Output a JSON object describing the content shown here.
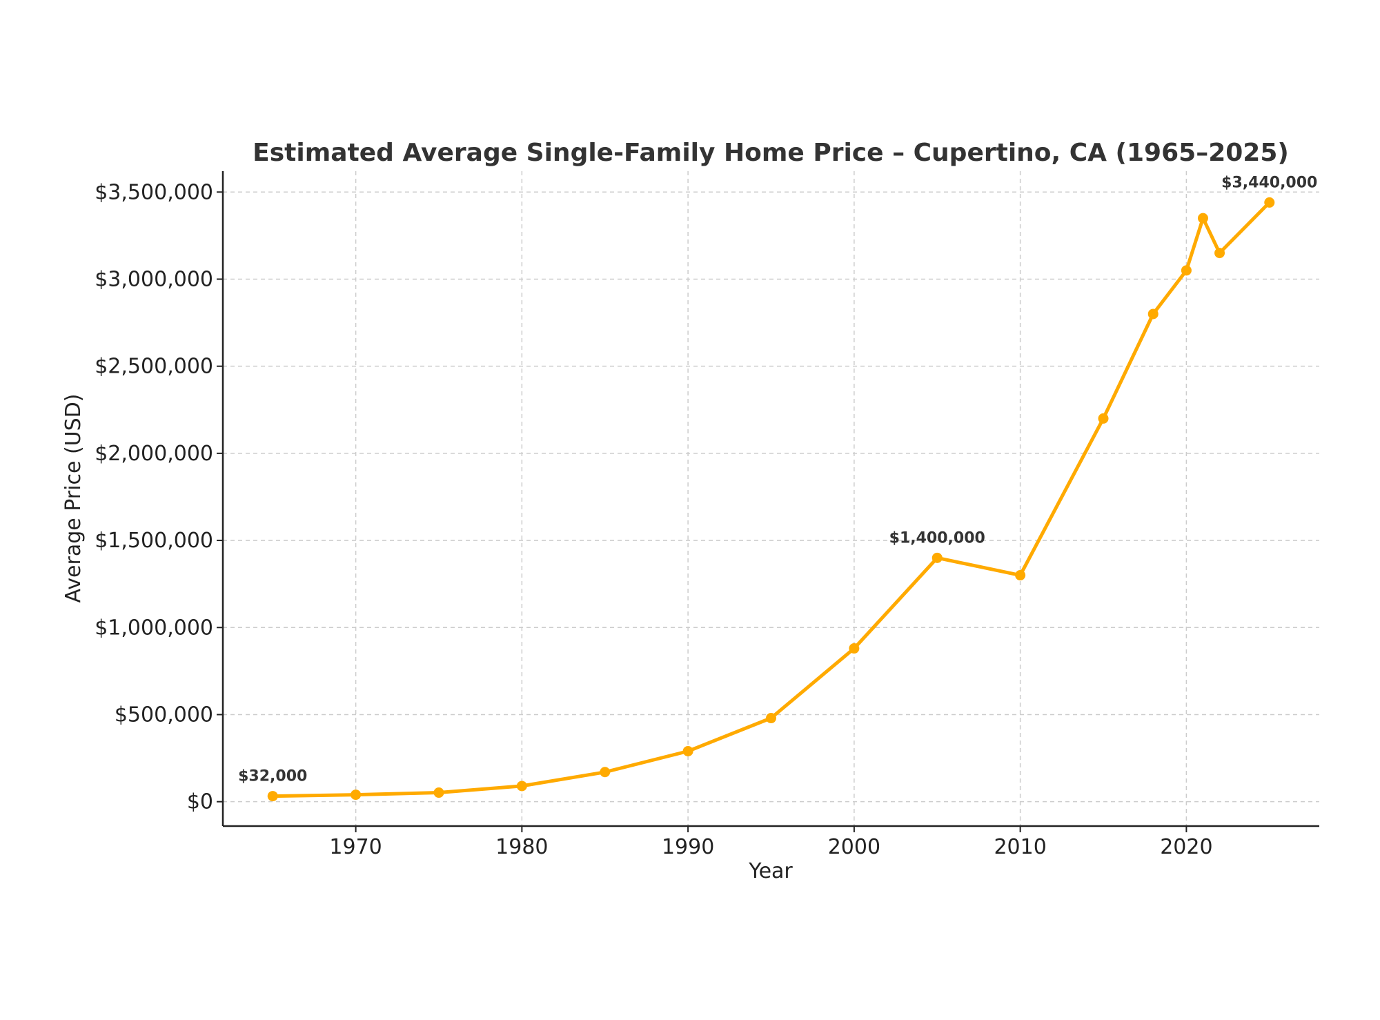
{
  "chart_data": {
    "type": "line",
    "title": "Estimated Average Single-Family Home Price – Cupertino, CA (1965–2025)",
    "xlabel": "Year",
    "ylabel": "Average Price (USD)",
    "xlim": [
      1962,
      2028
    ],
    "ylim": [
      -140000,
      3620000
    ],
    "x_ticks": [
      1970,
      1980,
      1990,
      2000,
      2010,
      2020
    ],
    "x_tick_labels": [
      "1970",
      "1980",
      "1990",
      "2000",
      "2010",
      "2020"
    ],
    "y_ticks": [
      0,
      500000,
      1000000,
      1500000,
      2000000,
      2500000,
      3000000,
      3500000
    ],
    "y_tick_labels": [
      "$0",
      "$500,000",
      "$1,000,000",
      "$1,500,000",
      "$2,000,000",
      "$2,500,000",
      "$3,000,000",
      "$3,500,000"
    ],
    "grid": true,
    "color": "#FFAA00",
    "series": [
      {
        "x": [
          1965,
          1970,
          1975,
          1980,
          1985,
          1990,
          1995,
          2000,
          2005,
          2010,
          2015,
          2018,
          2020,
          2021,
          2022,
          2025
        ],
        "values": [
          32000,
          40000,
          52000,
          90000,
          170000,
          290000,
          480000,
          880000,
          1400000,
          1300000,
          2200000,
          2800000,
          3050000,
          3350000,
          3150000,
          3440000
        ]
      }
    ],
    "annotations": [
      {
        "x": 1965,
        "y": 32000,
        "text": "$32,000"
      },
      {
        "x": 2005,
        "y": 1400000,
        "text": "$1,400,000"
      },
      {
        "x": 2025,
        "y": 3440000,
        "text": "$3,440,000"
      }
    ]
  }
}
